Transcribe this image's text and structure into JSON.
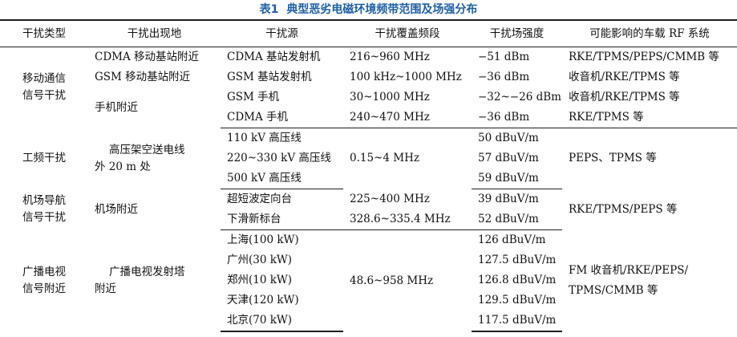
{
  "caption": {
    "number": "表1",
    "title": "典型恶劣电磁环境频带范围及场强分布"
  },
  "columns": [
    "干扰类型",
    "干扰出现地",
    "干扰源",
    "干扰覆盖频段",
    "干扰场强度",
    "可能影响的车载 RF 系统"
  ],
  "groups": [
    {
      "type": [
        "移动通信",
        "信号干扰"
      ],
      "rows": [
        {
          "location": "CDMA 移动基站附近",
          "source": "CDMA 基站发射机",
          "band": "216~960 MHz",
          "strength": "−51 dBm",
          "systems": "RKE/TPMS/PEPS/CMMB 等"
        },
        {
          "location": "GSM 移动基站附近",
          "source": "GSM 基站发射机",
          "band": "100 kHz~1000 MHz",
          "strength": "−36 dBm",
          "systems": "收音机/RKE/TPMS 等"
        },
        {
          "location": "手机附近",
          "source": "GSM 手机",
          "band": "30~1000 MHz",
          "strength": "−32~−26 dBm",
          "systems": "收音机/RKE/TPMS 等"
        },
        {
          "source": "CDMA 手机",
          "band": "240~470 MHz",
          "strength": "−36 dBm",
          "systems": "RKE/TPMS 等"
        }
      ]
    },
    {
      "type": [
        "工频干扰"
      ],
      "location": [
        "高压架空送电线",
        "外 20 m 处"
      ],
      "band": "0.15~4 MHz",
      "systems": "PEPS、TPMS 等",
      "rows": [
        {
          "source": "110 kV 高压线",
          "strength": "50 dBuV/m"
        },
        {
          "source": "220~330 kV 高压线",
          "strength": "57 dBuV/m"
        },
        {
          "source": "500 kV 高压线",
          "strength": "59 dBuV/m"
        }
      ]
    },
    {
      "type": [
        "机场导航",
        "信号干扰"
      ],
      "location": "机场附近",
      "systems": "RKE/TPMS/PEPS 等",
      "rows": [
        {
          "source": "超短波定向台",
          "band": "225~400 MHz",
          "strength": "39 dBuV/m"
        },
        {
          "source": "下滑新标台",
          "band": "328.6~335.4 MHz",
          "strength": "52 dBuV/m"
        }
      ]
    },
    {
      "type": [
        "广播电视",
        "信号附近"
      ],
      "location": [
        "广播电视发射塔",
        "附近"
      ],
      "band": "48.6~958 MHz",
      "systems": [
        "FM 收音机/RKE/PEPS/",
        "TPMS/CMMB 等"
      ],
      "rows": [
        {
          "source": "上海(100 kW)",
          "strength": "126 dBuV/m"
        },
        {
          "source": "广州(30 kW)",
          "strength": "127.5 dBuV/m"
        },
        {
          "source": "郑州(10 kW)",
          "strength": "126.8 dBuV/m"
        },
        {
          "source": "天津(120 kW)",
          "strength": "129.5 dBuV/m"
        },
        {
          "source": "北京(70 kW)",
          "strength": "117.5 dBuV/m"
        }
      ]
    }
  ]
}
